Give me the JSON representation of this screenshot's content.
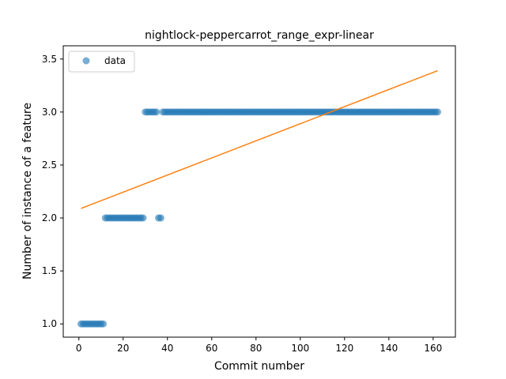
{
  "chart_data": {
    "type": "scatter",
    "title": "nightlock-peppercarrot_range_expr-linear",
    "xlabel": "Commit number",
    "ylabel": "Number of instance of a feature",
    "xlim": [
      -7.05,
      170.05
    ],
    "ylim": [
      0.875,
      3.625
    ],
    "xticks": [
      0,
      20,
      40,
      60,
      80,
      100,
      120,
      140,
      160
    ],
    "yticks": [
      1.0,
      1.5,
      2.0,
      2.5,
      3.0,
      3.5
    ],
    "xtick_labels": [
      "0",
      "20",
      "40",
      "60",
      "80",
      "100",
      "120",
      "140",
      "160"
    ],
    "ytick_labels": [
      "1.0",
      "1.5",
      "2.0",
      "2.5",
      "3.0",
      "3.5"
    ],
    "grid": false,
    "legend": {
      "position": "top-left",
      "entries": [
        "data"
      ]
    },
    "colors": {
      "data": "#1f77b4",
      "fit": "#ff7f0e"
    },
    "segments": [
      {
        "x_start": 1,
        "x_end": 11,
        "y": 1
      },
      {
        "x_start": 12,
        "x_end": 29,
        "y": 2
      },
      {
        "x_start": 30,
        "x_end": 35,
        "y": 3
      },
      {
        "x_start": 36,
        "x_end": 37,
        "y": 2
      },
      {
        "x_start": 38,
        "x_end": 162,
        "y": 3
      }
    ],
    "series": [
      {
        "name": "data",
        "kind": "scatter"
      },
      {
        "kind": "line",
        "x": [
          1,
          162
        ],
        "y": [
          2.09,
          3.39
        ]
      }
    ]
  }
}
